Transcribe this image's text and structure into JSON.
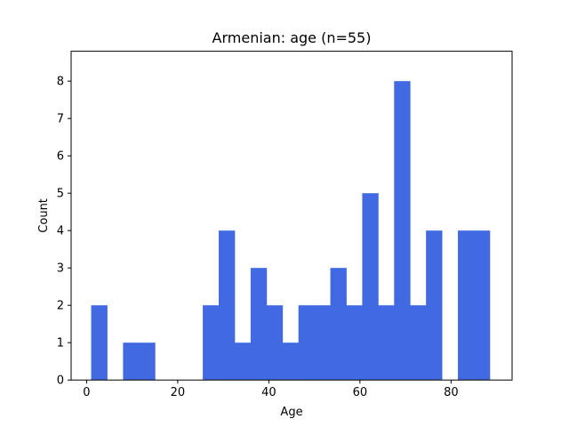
{
  "chart_data": {
    "type": "bar",
    "title": "Armenian: age (n=55)",
    "xlabel": "Age",
    "ylabel": "Count",
    "xlim": [
      -3.4,
      93.4
    ],
    "ylim": [
      0,
      8.8
    ],
    "xticks": [
      0,
      20,
      40,
      60,
      80
    ],
    "yticks": [
      0,
      1,
      2,
      3,
      4,
      5,
      6,
      7,
      8
    ],
    "bar_color": "#4169e1",
    "bin_edges": [
      1,
      4.5,
      8,
      11.5,
      15,
      18.5,
      22,
      25.5,
      29,
      32.5,
      36,
      39.5,
      43,
      46.5,
      50,
      53.5,
      57,
      60.5,
      64,
      67.5,
      71,
      74.5,
      78,
      81.5,
      85,
      88.5
    ],
    "counts": [
      2,
      0,
      1,
      1,
      0,
      0,
      0,
      2,
      4,
      1,
      3,
      2,
      1,
      2,
      2,
      3,
      2,
      5,
      2,
      8,
      2,
      4,
      0,
      4,
      4
    ],
    "grid": false,
    "legend": "none"
  }
}
